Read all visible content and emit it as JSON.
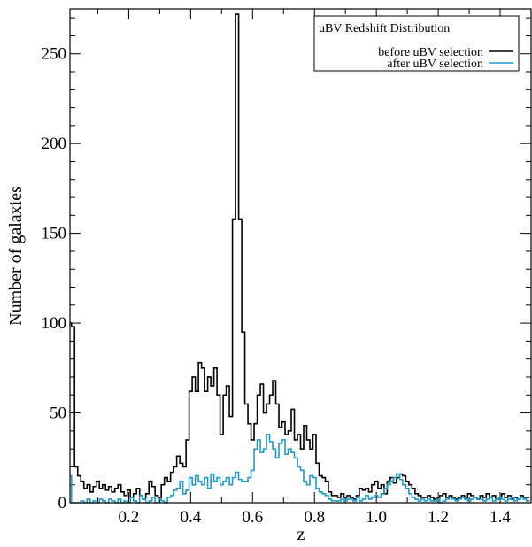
{
  "chart_data": {
    "type": "line",
    "title": "",
    "xlabel": "z",
    "ylabel": "Number of galaxies",
    "xlim": [
      0.01,
      1.5
    ],
    "ylim": [
      0,
      275
    ],
    "x_ticks": [
      0.2,
      0.4,
      0.6,
      0.8,
      1.0,
      1.2,
      1.4
    ],
    "x_tick_labels": [
      "0.2",
      "0.4",
      "0.6",
      "0.8",
      "1.0",
      "1.2",
      "1.4"
    ],
    "y_ticks": [
      0,
      50,
      100,
      150,
      200,
      250
    ],
    "y_tick_labels": [
      "0",
      "50",
      "100",
      "150",
      "200",
      "250"
    ],
    "grid": false,
    "legend": {
      "title": "uBV Redshift Distribution",
      "placement": "top-right",
      "entries": [
        "before uBV selection",
        "after uBV selection"
      ]
    },
    "bin_width": 0.01,
    "x": [
      0.01,
      0.02,
      0.03,
      0.04,
      0.05,
      0.06,
      0.07,
      0.08,
      0.09,
      0.1,
      0.11,
      0.12,
      0.13,
      0.14,
      0.15,
      0.16,
      0.17,
      0.18,
      0.19,
      0.2,
      0.21,
      0.22,
      0.23,
      0.24,
      0.25,
      0.26,
      0.27,
      0.28,
      0.29,
      0.3,
      0.31,
      0.32,
      0.33,
      0.34,
      0.35,
      0.36,
      0.37,
      0.38,
      0.39,
      0.4,
      0.41,
      0.42,
      0.43,
      0.44,
      0.45,
      0.46,
      0.47,
      0.48,
      0.49,
      0.5,
      0.51,
      0.52,
      0.53,
      0.54,
      0.55,
      0.56,
      0.57,
      0.58,
      0.59,
      0.6,
      0.61,
      0.62,
      0.63,
      0.64,
      0.65,
      0.66,
      0.67,
      0.68,
      0.69,
      0.7,
      0.71,
      0.72,
      0.73,
      0.74,
      0.75,
      0.76,
      0.77,
      0.78,
      0.79,
      0.8,
      0.81,
      0.82,
      0.83,
      0.84,
      0.85,
      0.86,
      0.87,
      0.88,
      0.89,
      0.9,
      0.91,
      0.92,
      0.93,
      0.94,
      0.95,
      0.96,
      0.97,
      0.98,
      0.99,
      1.0,
      1.01,
      1.02,
      1.03,
      1.04,
      1.05,
      1.06,
      1.07,
      1.08,
      1.09,
      1.1,
      1.11,
      1.12,
      1.13,
      1.14,
      1.15,
      1.16,
      1.17,
      1.18,
      1.19,
      1.2,
      1.21,
      1.22,
      1.23,
      1.24,
      1.25,
      1.26,
      1.27,
      1.28,
      1.29,
      1.3,
      1.31,
      1.32,
      1.33,
      1.34,
      1.35,
      1.36,
      1.37,
      1.38,
      1.39,
      1.4,
      1.41,
      1.42,
      1.43,
      1.44,
      1.45,
      1.46,
      1.47,
      1.48,
      1.49
    ],
    "series": [
      {
        "name": "before uBV selection",
        "color": "#000000",
        "values": [
          100,
          98,
          20,
          15,
          12,
          8,
          10,
          6,
          9,
          12,
          8,
          10,
          7,
          9,
          6,
          8,
          10,
          6,
          4,
          7,
          3,
          5,
          8,
          4,
          2,
          5,
          12,
          9,
          4,
          3,
          10,
          14,
          12,
          17,
          20,
          26,
          22,
          20,
          35,
          62,
          70,
          62,
          78,
          75,
          62,
          70,
          65,
          75,
          60,
          38,
          60,
          65,
          48,
          158,
          272,
          158,
          95,
          55,
          44,
          35,
          44,
          60,
          66,
          50,
          55,
          60,
          68,
          55,
          42,
          45,
          38,
          40,
          52,
          35,
          38,
          30,
          43,
          35,
          30,
          38,
          22,
          15,
          14,
          12,
          6,
          4,
          4,
          3,
          5,
          3,
          4,
          3,
          2,
          4,
          8,
          7,
          8,
          6,
          10,
          12,
          8,
          10,
          5,
          12,
          14,
          11,
          14,
          16,
          15,
          12,
          10,
          8,
          5,
          4,
          3,
          3,
          4,
          3,
          2,
          3,
          4,
          5,
          3,
          4,
          3,
          2,
          3,
          4,
          3,
          5,
          4,
          3,
          2,
          4,
          3,
          5,
          3,
          4,
          2,
          3,
          5,
          3,
          4,
          2,
          3,
          2,
          4,
          3,
          3
        ]
      },
      {
        "name": "after uBV selection",
        "color": "#1f9bc7",
        "values": [
          15,
          0,
          0,
          0,
          1,
          0,
          2,
          0,
          1,
          0,
          2,
          1,
          0,
          2,
          1,
          0,
          2,
          0,
          1,
          0,
          3,
          1,
          0,
          4,
          2,
          0,
          1,
          3,
          0,
          2,
          1,
          0,
          3,
          4,
          7,
          8,
          12,
          5,
          7,
          14,
          10,
          15,
          12,
          10,
          14,
          8,
          16,
          12,
          14,
          10,
          12,
          14,
          10,
          14,
          17,
          13,
          12,
          12,
          14,
          18,
          30,
          35,
          28,
          30,
          38,
          34,
          30,
          25,
          33,
          35,
          27,
          30,
          28,
          25,
          20,
          18,
          12,
          10,
          15,
          14,
          8,
          6,
          5,
          4,
          2,
          1,
          1,
          1,
          2,
          1,
          2,
          2,
          1,
          3,
          1,
          2,
          4,
          2,
          3,
          4,
          3,
          5,
          8,
          10,
          12,
          14,
          16,
          13,
          10,
          8,
          5,
          3,
          2,
          1,
          2,
          1,
          2,
          1,
          1,
          2,
          0,
          1,
          2,
          3,
          2,
          1,
          2,
          3,
          2,
          1,
          2,
          3,
          2,
          2,
          1,
          2,
          3,
          1,
          2,
          3,
          2,
          1,
          2,
          3,
          1,
          2,
          3,
          2,
          1
        ]
      }
    ]
  }
}
